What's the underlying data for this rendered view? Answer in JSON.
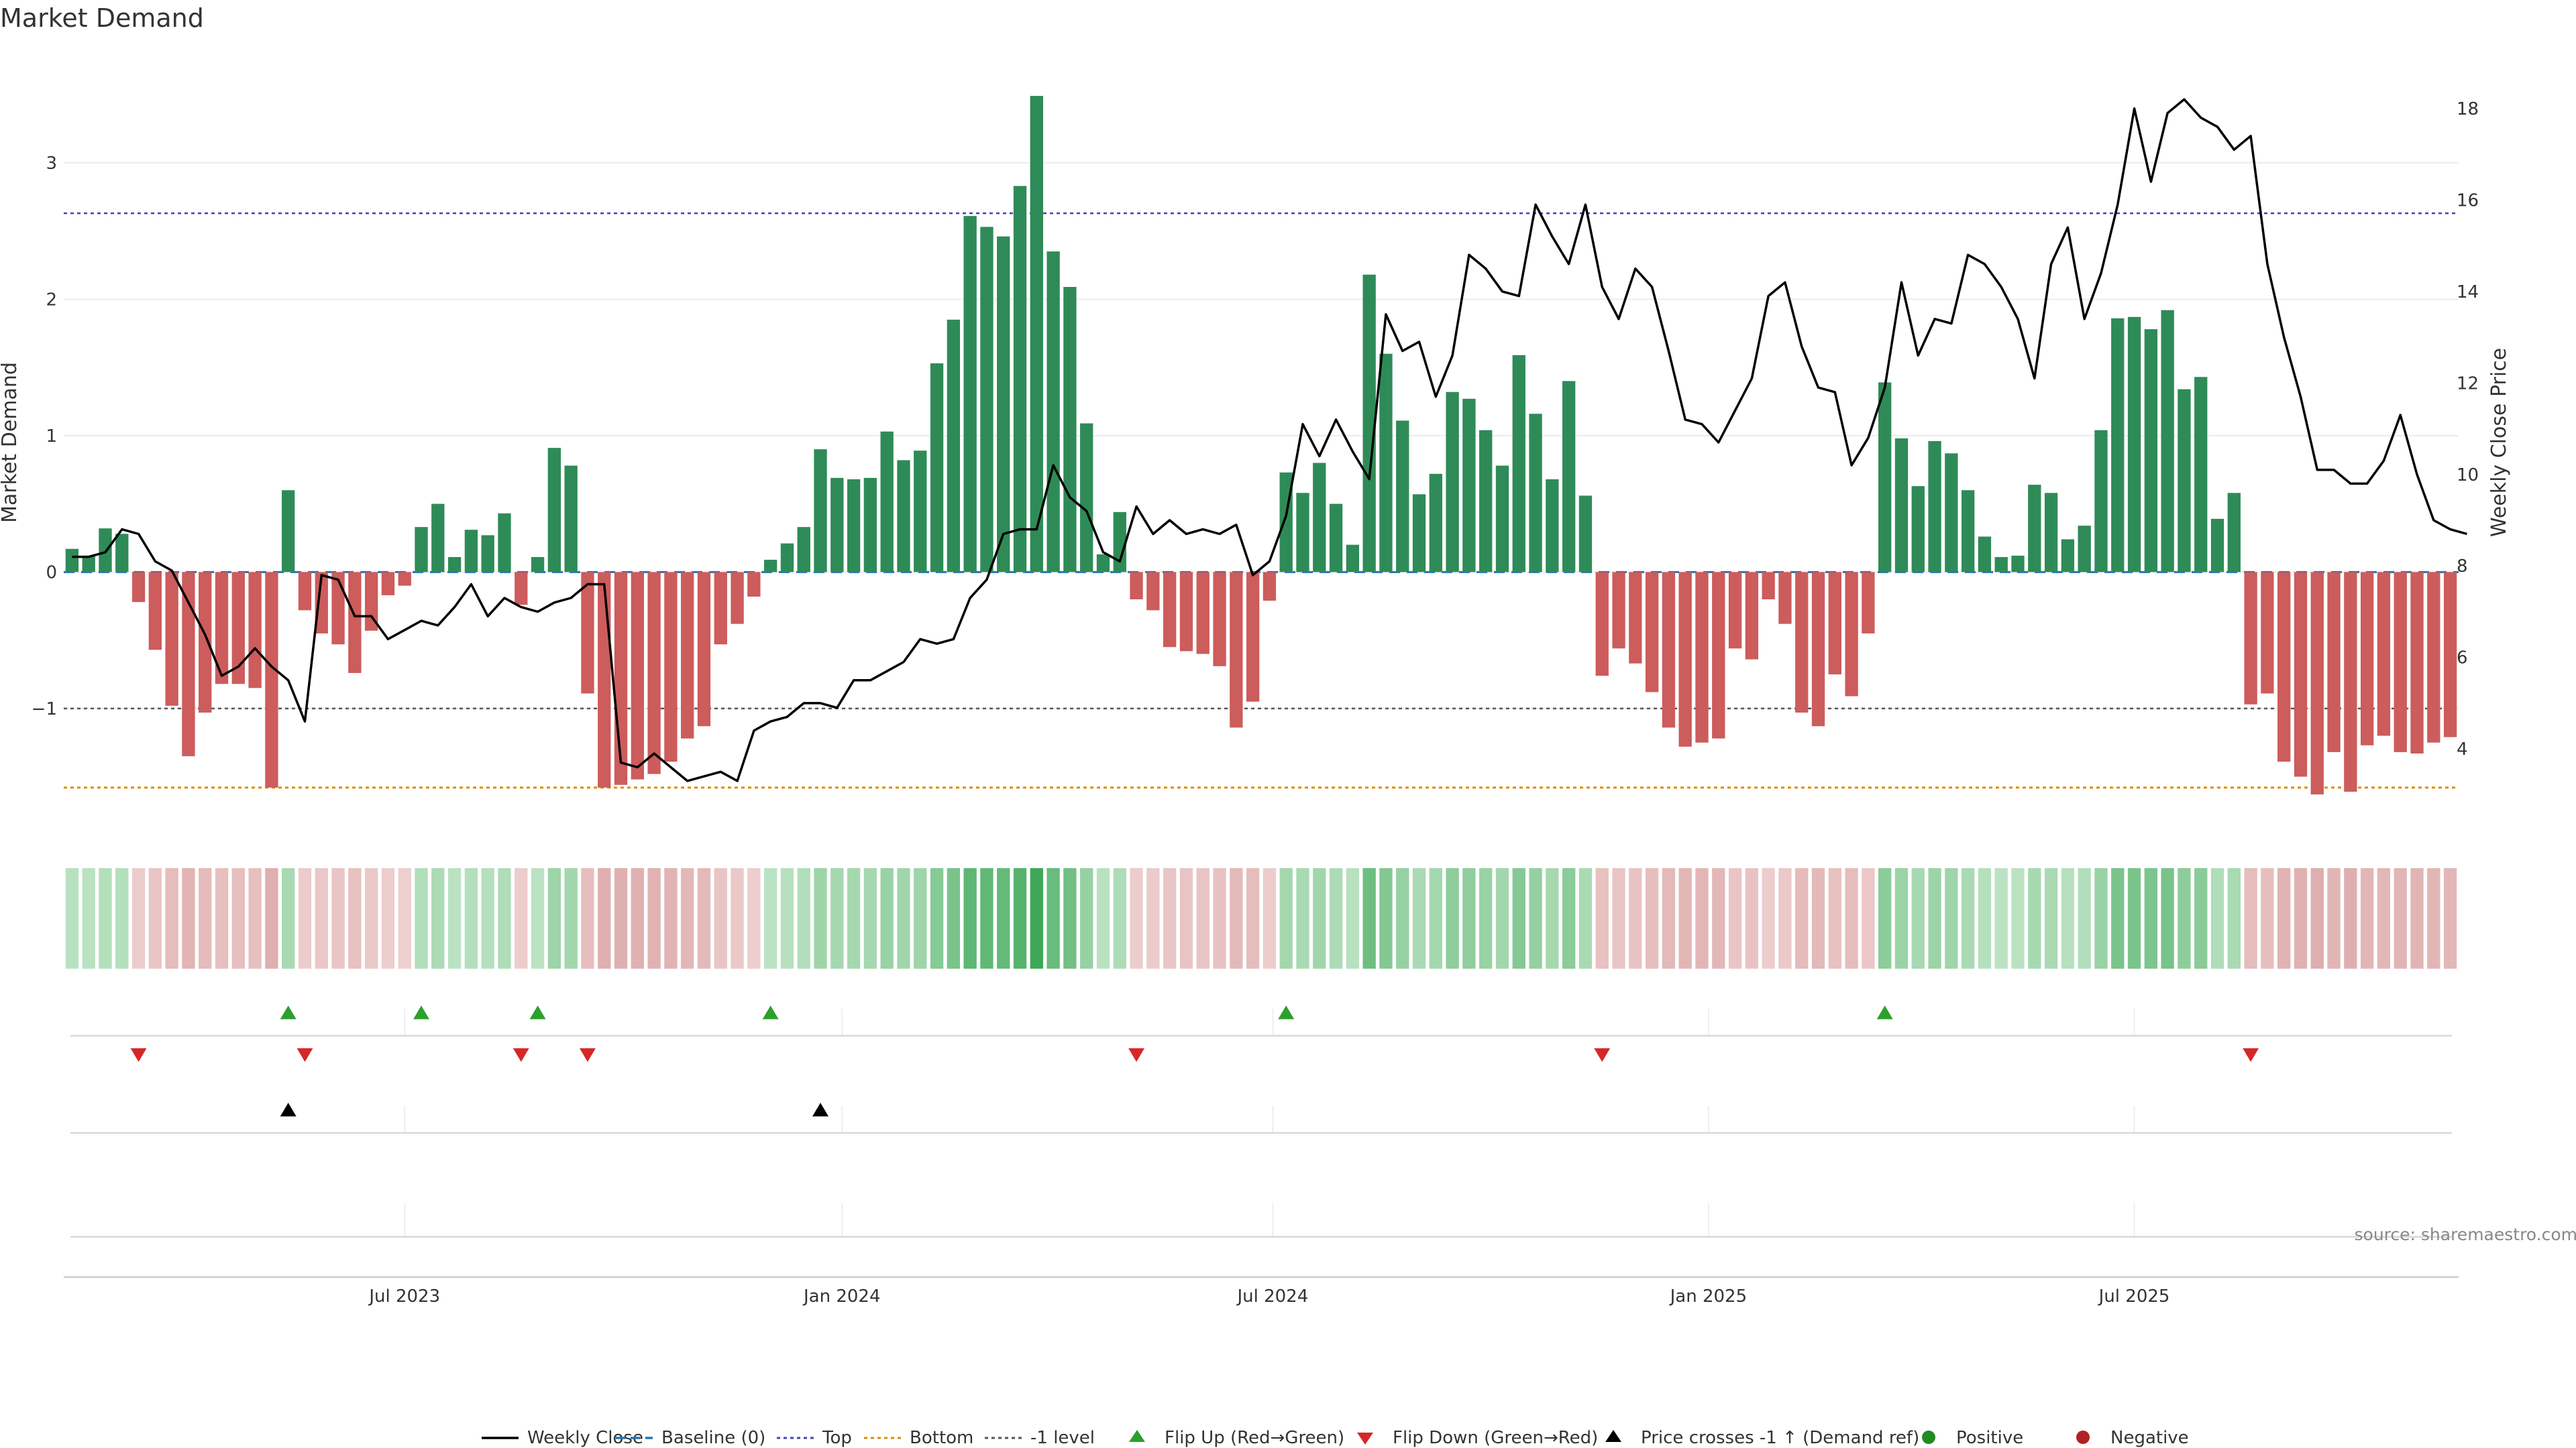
{
  "chart_data": {
    "type": "bar",
    "title": "Market Demand",
    "ylabel": "Market Demand",
    "y2label": "Weekly Close Price",
    "ylim": [
      -1.9,
      3.8
    ],
    "y2lim": [
      2.2,
      19.2
    ],
    "yticks": [
      -1,
      0,
      1,
      2,
      3
    ],
    "y2ticks": [
      4,
      6,
      8,
      10,
      12,
      14,
      16,
      18
    ],
    "x_ticks": [
      "Jul 2023",
      "Jan 2024",
      "Jul 2024",
      "Jan 2025",
      "Jul 2025"
    ],
    "x_tick_index": [
      20.5,
      46.8,
      72.7,
      98.9,
      124.5
    ],
    "reference_lines": {
      "top": 2.63,
      "bottom": -1.58,
      "minus_one": -1
    },
    "demand": [
      0.17,
      0.12,
      0.32,
      0.28,
      -0.22,
      -0.57,
      -0.98,
      -1.35,
      -1.03,
      -0.82,
      -0.82,
      -0.85,
      -1.58,
      0.6,
      -0.28,
      -0.45,
      -0.53,
      -0.74,
      -0.43,
      -0.17,
      -0.1,
      0.33,
      0.5,
      0.11,
      0.31,
      0.27,
      0.43,
      -0.24,
      0.11,
      0.91,
      0.78,
      -0.89,
      -1.58,
      -1.56,
      -1.52,
      -1.48,
      -1.39,
      -1.22,
      -1.13,
      -0.53,
      -0.38,
      -0.18,
      0.09,
      0.21,
      0.33,
      0.9,
      0.69,
      0.68,
      0.69,
      1.03,
      0.82,
      0.89,
      1.53,
      1.85,
      2.61,
      2.53,
      2.46,
      2.83,
      3.49,
      2.35,
      2.09,
      1.09,
      0.13,
      0.44,
      -0.2,
      -0.28,
      -0.55,
      -0.58,
      -0.6,
      -0.69,
      -1.14,
      -0.95,
      -0.21,
      0.73,
      0.58,
      0.8,
      0.5,
      0.2,
      2.18,
      1.6,
      1.11,
      0.57,
      0.72,
      1.32,
      1.27,
      1.04,
      0.78,
      1.59,
      1.16,
      0.68,
      1.4,
      0.56,
      -0.76,
      -0.56,
      -0.67,
      -0.88,
      -1.14,
      -1.28,
      -1.25,
      -1.22,
      -0.56,
      -0.64,
      -0.2,
      -0.38,
      -1.03,
      -1.13,
      -0.75,
      -0.91,
      -0.45,
      1.39,
      0.98,
      0.63,
      0.96,
      0.87,
      0.6,
      0.26,
      0.11,
      0.12,
      0.64,
      0.58,
      0.24,
      0.34,
      1.04,
      1.86,
      1.87,
      1.78,
      1.92,
      1.34,
      1.43,
      0.39,
      0.58,
      -0.97,
      -0.89,
      -1.39,
      -1.5,
      -1.63,
      -1.32,
      -1.61,
      -1.27,
      -1.2,
      -1.32,
      -1.33,
      -1.25,
      -1.21
    ],
    "weekly_close": [
      8.2,
      8.2,
      8.3,
      8.8,
      8.7,
      8.1,
      7.9,
      7.2,
      6.5,
      5.6,
      5.8,
      6.2,
      5.8,
      5.5,
      4.6,
      7.8,
      7.7,
      6.9,
      6.9,
      6.4,
      6.6,
      6.8,
      6.7,
      7.1,
      7.6,
      6.9,
      7.3,
      7.1,
      7.0,
      7.2,
      7.3,
      7.6,
      7.6,
      3.7,
      3.6,
      3.9,
      3.6,
      3.3,
      3.4,
      3.5,
      3.3,
      4.4,
      4.6,
      4.7,
      5.0,
      5.0,
      4.9,
      5.5,
      5.5,
      5.7,
      5.9,
      6.4,
      6.3,
      6.4,
      7.3,
      7.7,
      8.7,
      8.8,
      8.8,
      10.2,
      9.5,
      9.2,
      8.3,
      8.1,
      9.3,
      8.7,
      9.0,
      8.7,
      8.8,
      8.7,
      8.9,
      7.8,
      8.1,
      9.1,
      11.1,
      10.4,
      11.2,
      10.5,
      9.9,
      13.5,
      12.7,
      12.9,
      11.7,
      12.6,
      14.8,
      14.5,
      14.0,
      13.9,
      15.9,
      15.2,
      14.6,
      15.9,
      14.1,
      13.4,
      14.5,
      14.1,
      12.7,
      11.2,
      11.1,
      10.7,
      11.4,
      12.1,
      13.9,
      14.2,
      12.8,
      11.9,
      11.8,
      10.2,
      10.8,
      11.9,
      14.2,
      12.6,
      13.4,
      13.3,
      14.8,
      14.6,
      14.1,
      13.4,
      12.1,
      14.6,
      15.4,
      13.4,
      14.4,
      15.9,
      18.0,
      16.4,
      17.9,
      18.2,
      17.8,
      17.6,
      17.1,
      17.4,
      14.6,
      13.0,
      11.7,
      10.1,
      10.1,
      9.8,
      9.8,
      10.3,
      11.3,
      10.0,
      9.0,
      8.8,
      8.7
    ],
    "flip_up_index": [
      13,
      21,
      28,
      42,
      73,
      109
    ],
    "flip_down_index": [
      4,
      14,
      27,
      31,
      64,
      92,
      131
    ],
    "price_cross_index": [
      13,
      45
    ],
    "legend": [
      "Weekly Close",
      "Baseline (0)",
      "Top",
      "Bottom",
      "-1 level",
      "Flip Up (Red→Green)",
      "Flip Down (Green→Red)",
      "Price crosses -1 ↑ (Demand ref)",
      "Positive",
      "Negative"
    ],
    "source": "source: sharemaestro.com",
    "colors": {
      "positive": "#2e8b57",
      "negative": "#cd5c5c",
      "price": "#000000",
      "baseline": "#1f77b4",
      "top": "#4040c0",
      "bottom": "#e08a00",
      "minus_one": "#555555",
      "flip_up": "#2ca02c",
      "flip_down": "#d62728",
      "positive_dot": "#228b22",
      "negative_dot": "#b22222"
    }
  }
}
